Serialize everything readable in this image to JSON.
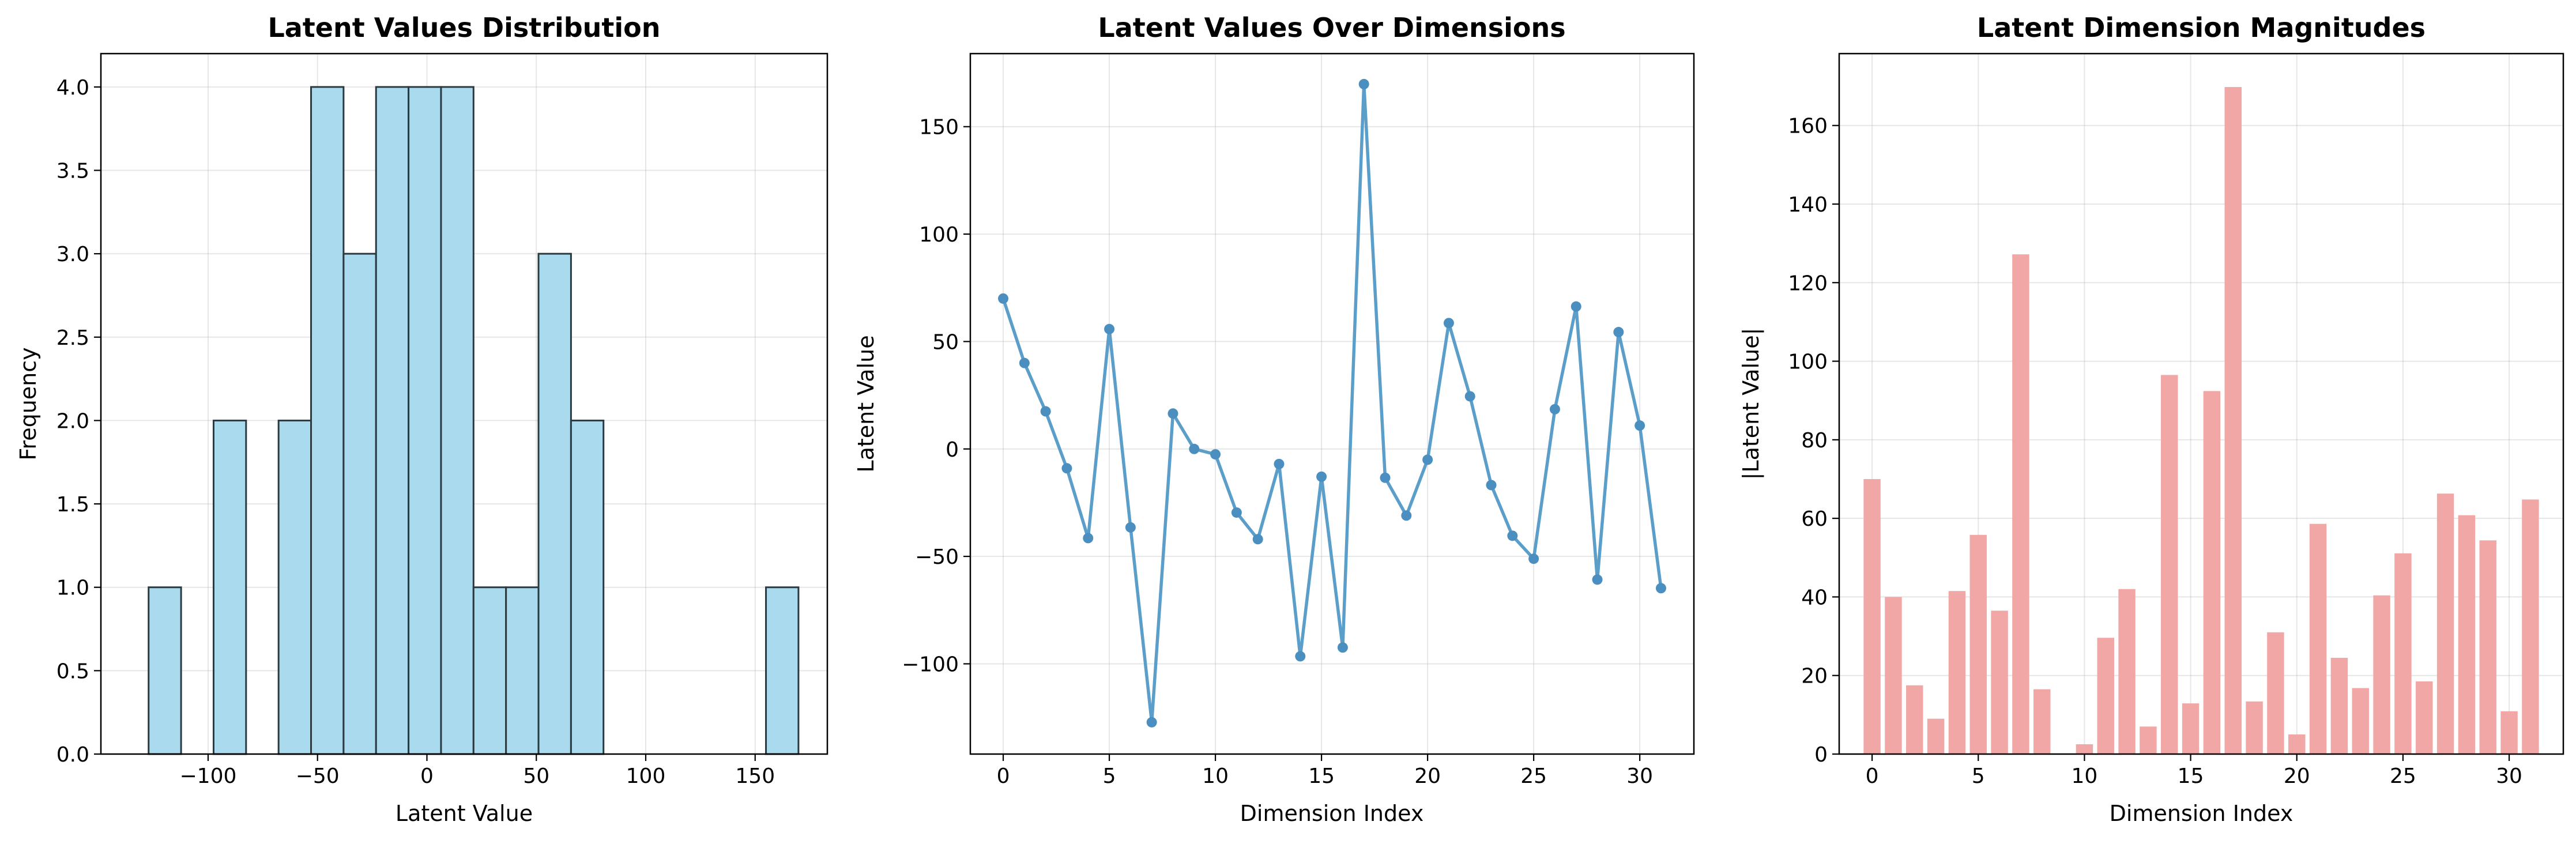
{
  "chart_data": [
    {
      "type": "bar",
      "subtype": "histogram",
      "title": "Latent Values Distribution",
      "xlabel": "Latent Value",
      "ylabel": "Frequency",
      "bin_edges": [
        -127.2,
        -112.35,
        -97.5,
        -82.65,
        -67.8,
        -52.95,
        -38.1,
        -23.25,
        -8.4,
        6.45,
        21.3,
        36.15,
        51.0,
        65.85,
        80.7,
        95.55,
        110.4,
        125.25,
        140.1,
        154.95,
        169.8
      ],
      "counts": [
        1,
        0,
        2,
        0,
        2,
        4,
        3,
        4,
        4,
        4,
        1,
        1,
        3,
        2,
        0,
        0,
        0,
        0,
        0,
        1
      ],
      "xlim": [
        -149,
        183
      ],
      "ylim": [
        0,
        4.2
      ],
      "xticks": [
        -100,
        -50,
        0,
        50,
        100,
        150
      ],
      "yticks": [
        0.0,
        0.5,
        1.0,
        1.5,
        2.0,
        2.5,
        3.0,
        3.5,
        4.0
      ],
      "xtick_labels": [
        "−100",
        "−50",
        "0",
        "50",
        "100",
        "150"
      ],
      "ytick_labels": [
        "0.0",
        "0.5",
        "1.0",
        "1.5",
        "2.0",
        "2.5",
        "3.0",
        "3.5",
        "4.0"
      ],
      "grid": true,
      "color": "#aadaee",
      "edgecolor": "#2b3a40"
    },
    {
      "type": "line",
      "title": "Latent Values Over Dimensions",
      "xlabel": "Dimension Index",
      "ylabel": "Latent Value",
      "x": [
        0,
        1,
        2,
        3,
        4,
        5,
        6,
        7,
        8,
        9,
        10,
        11,
        12,
        13,
        14,
        15,
        16,
        17,
        18,
        19,
        20,
        21,
        22,
        23,
        24,
        25,
        26,
        27,
        28,
        29,
        30,
        31
      ],
      "y": [
        70,
        40,
        17.5,
        -9,
        -41.5,
        55.8,
        -36.5,
        -127.2,
        16.5,
        0,
        -2.5,
        -29.6,
        -42,
        -7,
        -96.5,
        -12.9,
        -92.4,
        169.8,
        -13.4,
        -31,
        -5,
        58.6,
        24.5,
        -16.8,
        -40.4,
        -51.1,
        18.5,
        66.3,
        -60.8,
        54.4,
        10.9,
        -64.8
      ],
      "xlim": [
        -1.55,
        32.55
      ],
      "ylim": [
        -142,
        184
      ],
      "xticks": [
        0,
        5,
        10,
        15,
        20,
        25,
        30
      ],
      "yticks": [
        -100,
        -50,
        0,
        50,
        100,
        150
      ],
      "xtick_labels": [
        "0",
        "5",
        "10",
        "15",
        "20",
        "25",
        "30"
      ],
      "ytick_labels": [
        "−100",
        "−50",
        "0",
        "50",
        "100",
        "150"
      ],
      "grid": true,
      "color": "#5a9ec9"
    },
    {
      "type": "bar",
      "title": "Latent Dimension Magnitudes",
      "xlabel": "Dimension Index",
      "ylabel": "|Latent Value|",
      "x": [
        0,
        1,
        2,
        3,
        4,
        5,
        6,
        7,
        8,
        9,
        10,
        11,
        12,
        13,
        14,
        15,
        16,
        17,
        18,
        19,
        20,
        21,
        22,
        23,
        24,
        25,
        26,
        27,
        28,
        29,
        30,
        31
      ],
      "values": [
        70,
        40,
        17.5,
        9,
        41.5,
        55.8,
        36.5,
        127.2,
        16.5,
        0,
        2.5,
        29.6,
        42,
        7,
        96.5,
        12.9,
        92.4,
        169.8,
        13.4,
        31,
        5,
        58.6,
        24.5,
        16.8,
        40.4,
        51.1,
        18.5,
        66.3,
        60.8,
        54.4,
        10.9,
        64.8
      ],
      "xlim": [
        -1.55,
        32.55
      ],
      "ylim": [
        0,
        178.3
      ],
      "xticks": [
        0,
        5,
        10,
        15,
        20,
        25,
        30
      ],
      "yticks": [
        0,
        20,
        40,
        60,
        80,
        100,
        120,
        140,
        160
      ],
      "xtick_labels": [
        "0",
        "5",
        "10",
        "15",
        "20",
        "25",
        "30"
      ],
      "ytick_labels": [
        "0",
        "20",
        "40",
        "60",
        "80",
        "100",
        "120",
        "140",
        "160"
      ],
      "grid": true,
      "color": "#f2a7a7"
    }
  ]
}
